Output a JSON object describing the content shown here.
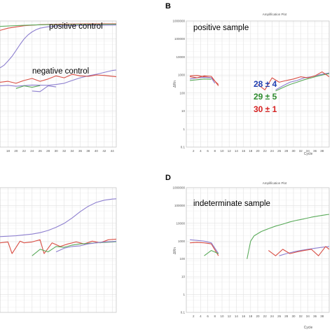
{
  "colors": {
    "red": "#d94f45",
    "blue": "#8d7fcf",
    "green": "#5bab5b",
    "grid": "#e2e2e2",
    "frame": "#c8c8c8",
    "ct_blue": "#1f3fb0",
    "ct_green": "#2e8b2e",
    "ct_red": "#d62020"
  },
  "chart_data": [
    {
      "id": "A",
      "letter": "",
      "type": "line",
      "log_y": true,
      "title": "",
      "xlabel": "",
      "ylabel": "",
      "xlim": [
        16,
        45
      ],
      "ylim": [
        0.1,
        1000000
      ],
      "x_ticks": [
        "18",
        "20",
        "22",
        "24",
        "26",
        "28",
        "30",
        "32",
        "34",
        "36",
        "38",
        "40",
        "42",
        "44"
      ],
      "y_ticks": [],
      "annotations": [
        {
          "text": "positive control",
          "x": 33,
          "y": 600000
        },
        {
          "text": "negative control",
          "x": 30,
          "y": 3000
        }
      ],
      "series": [
        {
          "color": "red",
          "x": [
            16,
            18,
            22,
            26,
            30,
            34,
            38,
            42,
            45
          ],
          "y": [
            300000,
            400000,
            550000,
            630000,
            660000,
            680000,
            690000,
            700000,
            700000
          ]
        },
        {
          "color": "green",
          "x": [
            16,
            20,
            24,
            28,
            32,
            36,
            40,
            44,
            45
          ],
          "y": [
            500000,
            560000,
            600000,
            630000,
            640000,
            650000,
            650000,
            655000,
            655000
          ]
        },
        {
          "color": "blue",
          "x": [
            16,
            17,
            18,
            19,
            20,
            21,
            22,
            23,
            24,
            25,
            26,
            28,
            30,
            33,
            36,
            40,
            45
          ],
          "y": [
            2500,
            3500,
            6000,
            11000,
            23000,
            50000,
            100000,
            170000,
            250000,
            330000,
            400000,
            480000,
            530000,
            560000,
            580000,
            590000,
            600000
          ]
        },
        {
          "color": "blue",
          "x": [
            16,
            18,
            20,
            24,
            28,
            30,
            32,
            34,
            36,
            38,
            40,
            42,
            44,
            45
          ],
          "y": [
            250,
            270,
            240,
            280,
            270,
            300,
            350,
            500,
            700,
            900,
            1100,
            1400,
            1800,
            1900
          ]
        },
        {
          "color": "red",
          "x": [
            16,
            18,
            20,
            22,
            24,
            26,
            28,
            30,
            32,
            34,
            36,
            38,
            40,
            42,
            45
          ],
          "y": [
            400,
            450,
            350,
            500,
            650,
            450,
            600,
            900,
            700,
            1100,
            900,
            850,
            1000,
            950,
            800
          ]
        },
        {
          "color": "green",
          "x": [
            20,
            22,
            24,
            26
          ],
          "y": [
            180,
            250,
            210,
            260
          ]
        },
        {
          "color": "blue",
          "x": [
            24,
            26,
            28,
            30
          ],
          "y": [
            130,
            120,
            250,
            220
          ]
        }
      ]
    },
    {
      "id": "B",
      "letter": "B",
      "type": "line",
      "log_y": true,
      "title": "Amplification Plot",
      "xlabel": "Cycle",
      "ylabel": "ΔRn",
      "xlim": [
        0,
        40
      ],
      "ylim": [
        0.1,
        1000000
      ],
      "x_ticks": [
        "2",
        "4",
        "6",
        "8",
        "10",
        "12",
        "14",
        "16",
        "18",
        "20",
        "22",
        "24",
        "26",
        "28",
        "30",
        "32",
        "34",
        "36",
        "38"
      ],
      "y_ticks": [
        "1000000",
        "100000",
        "10000",
        "1000",
        "100",
        "10",
        "1",
        "0.1"
      ],
      "annotations": [
        {
          "text": "positive sample",
          "x": 4,
          "y": 250000
        }
      ],
      "ct_values": [
        {
          "text": "28 ± 4",
          "color": "ct_blue"
        },
        {
          "text": "29 ± 5",
          "color": "ct_green"
        },
        {
          "text": "30 ± 1",
          "color": "ct_red"
        }
      ],
      "series": [
        {
          "color": "red",
          "x": [
            1,
            3,
            5,
            7,
            9
          ],
          "y": [
            900,
            950,
            800,
            700,
            300
          ]
        },
        {
          "color": "blue",
          "x": [
            1,
            3,
            5,
            7,
            8
          ],
          "y": [
            600,
            700,
            750,
            700,
            350
          ]
        },
        {
          "color": "green",
          "x": [
            1,
            3,
            5,
            7
          ],
          "y": [
            500,
            550,
            600,
            580
          ]
        },
        {
          "color": "red",
          "x": [
            1,
            3,
            5,
            7,
            9
          ],
          "y": [
            800,
            700,
            900,
            850,
            250
          ]
        },
        {
          "color": "blue",
          "x": [
            25,
            27,
            29,
            31,
            33,
            35,
            37,
            39,
            40
          ],
          "y": [
            150,
            250,
            400,
            500,
            700,
            800,
            1000,
            1200,
            1300
          ]
        },
        {
          "color": "green",
          "x": [
            25,
            27,
            29,
            31,
            33,
            35,
            37,
            39,
            40
          ],
          "y": [
            130,
            200,
            300,
            400,
            550,
            700,
            900,
            1100,
            1200
          ]
        },
        {
          "color": "red",
          "x": [
            20,
            22,
            24,
            26,
            28,
            30,
            32,
            34,
            36,
            38,
            40
          ],
          "y": [
            300,
            150,
            700,
            400,
            500,
            600,
            800,
            700,
            900,
            1500,
            800
          ]
        }
      ]
    },
    {
      "id": "C",
      "letter": "",
      "type": "line",
      "log_y": true,
      "title": "",
      "xlabel": "",
      "ylabel": "",
      "xlim": [
        16,
        45
      ],
      "ylim": [
        0.1,
        1000000
      ],
      "x_ticks": [],
      "y_ticks": [],
      "annotations": [],
      "series": [
        {
          "color": "blue",
          "x": [
            16,
            20,
            24,
            26,
            28,
            30,
            32,
            34,
            36,
            38,
            40,
            42,
            44,
            45
          ],
          "y": [
            1800,
            2000,
            2500,
            3000,
            4000,
            6000,
            10000,
            20000,
            45000,
            90000,
            150000,
            200000,
            230000,
            240000
          ]
        },
        {
          "color": "red",
          "x": [
            16,
            18,
            19,
            21,
            22,
            24,
            26,
            27,
            29,
            31,
            33,
            35,
            37,
            39,
            41,
            43,
            45
          ],
          "y": [
            800,
            900,
            200,
            1000,
            800,
            900,
            1200,
            200,
            800,
            500,
            700,
            900,
            700,
            1000,
            800,
            1200,
            1300
          ]
        },
        {
          "color": "green",
          "x": [
            24,
            26,
            28,
            30,
            32,
            34,
            36,
            38,
            40,
            42,
            44,
            45
          ],
          "y": [
            150,
            350,
            250,
            500,
            450,
            600,
            700,
            750,
            800,
            850,
            900,
            950
          ]
        },
        {
          "color": "blue",
          "x": [
            30,
            32,
            34,
            36,
            38,
            40,
            42,
            44,
            45
          ],
          "y": [
            250,
            400,
            500,
            550,
            700,
            800,
            900,
            950,
            1000
          ]
        }
      ]
    },
    {
      "id": "D",
      "letter": "D",
      "type": "line",
      "log_y": true,
      "title": "Amplification Plot",
      "xlabel": "Cycle",
      "ylabel": "ΔRn",
      "xlim": [
        0,
        40
      ],
      "ylim": [
        0.1,
        1000000
      ],
      "x_ticks": [
        "2",
        "4",
        "6",
        "8",
        "10",
        "12",
        "14",
        "16",
        "18",
        "20",
        "22",
        "24",
        "26",
        "28",
        "30",
        "32",
        "34",
        "36",
        "38"
      ],
      "y_ticks": [
        "1000000",
        "100000",
        "10000",
        "1000",
        "100",
        "10",
        "1",
        "0.1"
      ],
      "annotations": [
        {
          "text": "indeterminate sample",
          "x": 4,
          "y": 250000
        }
      ],
      "series": [
        {
          "color": "red",
          "x": [
            1,
            3,
            5,
            7,
            9
          ],
          "y": [
            800,
            850,
            800,
            700,
            150
          ]
        },
        {
          "color": "blue",
          "x": [
            1,
            3,
            5,
            7,
            9
          ],
          "y": [
            1200,
            1100,
            1000,
            800,
            200
          ]
        },
        {
          "color": "green",
          "x": [
            5,
            7,
            9
          ],
          "y": [
            150,
            300,
            200
          ]
        },
        {
          "color": "green",
          "x": [
            17,
            18,
            19,
            21,
            23,
            25,
            27,
            29,
            31,
            33,
            35,
            37,
            39,
            40
          ],
          "y": [
            100,
            1000,
            2000,
            3500,
            5000,
            7000,
            9000,
            12000,
            15000,
            18000,
            22000,
            26000,
            30000,
            32000
          ]
        },
        {
          "color": "blue",
          "x": [
            26,
            28,
            30,
            32,
            34,
            36,
            38,
            40
          ],
          "y": [
            150,
            200,
            250,
            300,
            350,
            400,
            450,
            500
          ]
        },
        {
          "color": "red",
          "x": [
            23,
            25,
            27,
            29,
            31,
            33,
            35,
            37,
            39,
            40
          ],
          "y": [
            300,
            150,
            350,
            200,
            250,
            300,
            350,
            150,
            500,
            350
          ]
        }
      ]
    }
  ]
}
